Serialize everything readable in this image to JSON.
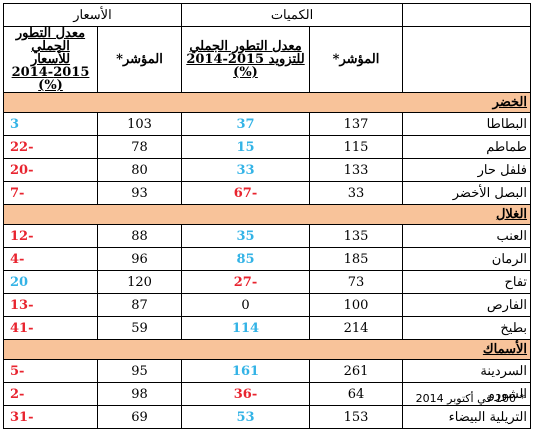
{
  "headers": {
    "quantities": "الكميات",
    "prices": "الأسعار",
    "index": "المؤشر*",
    "qty_rate_line1": "معدل التطور الجملي",
    "qty_rate_line2": "للتزويد 2015-2014",
    "prices_rate_line1": "معدل التطور الجملي",
    "prices_rate_line2": "للأسعار 2015-2014",
    "percent": "(%)"
  },
  "sections": [
    {
      "title": "الخضر",
      "rows": [
        {
          "name": "البطاطا",
          "qty_index": "137",
          "qty_rate": "37",
          "qty_color": "blue",
          "price_index": "103",
          "price_rate": "3",
          "price_color": "blue"
        },
        {
          "name": "طماطم",
          "qty_index": "115",
          "qty_rate": "15",
          "qty_color": "blue",
          "price_index": "78",
          "price_rate": "-22",
          "price_color": "red"
        },
        {
          "name": "فلفل حار",
          "qty_index": "133",
          "qty_rate": "33",
          "qty_color": "blue",
          "price_index": "80",
          "price_rate": "-20",
          "price_color": "red"
        },
        {
          "name": "البصل الأخضر",
          "qty_index": "33",
          "qty_rate": "-67",
          "qty_color": "red",
          "price_index": "93",
          "price_rate": "-7",
          "price_color": "red"
        }
      ]
    },
    {
      "title": "الغلال",
      "rows": [
        {
          "name": "العنب",
          "qty_index": "135",
          "qty_rate": "35",
          "qty_color": "blue",
          "price_index": "88",
          "price_rate": "-12",
          "price_color": "red"
        },
        {
          "name": "الرمان",
          "qty_index": "185",
          "qty_rate": "85",
          "qty_color": "blue",
          "price_index": "96",
          "price_rate": "-4",
          "price_color": "red"
        },
        {
          "name": "تفاح",
          "qty_index": "73",
          "qty_rate": "-27",
          "qty_color": "red",
          "price_index": "120",
          "price_rate": "20",
          "price_color": "blue"
        },
        {
          "name": "الفارص",
          "qty_index": "100",
          "qty_rate": "0",
          "qty_color": "plain",
          "price_index": "87",
          "price_rate": "-13",
          "price_color": "red"
        },
        {
          "name": "بطيخ",
          "qty_index": "214",
          "qty_rate": "114",
          "qty_color": "blue",
          "price_index": "59",
          "price_rate": "-41",
          "price_color": "red"
        }
      ]
    },
    {
      "title": "الأسماك",
      "rows": [
        {
          "name": "السردينة",
          "qty_index": "261",
          "qty_rate": "161",
          "qty_color": "blue",
          "price_index": "95",
          "price_rate": "-5",
          "price_color": "red"
        },
        {
          "name": "الشورو",
          "qty_index": "64",
          "qty_rate": "-36",
          "qty_color": "red",
          "price_index": "98",
          "price_rate": "-2",
          "price_color": "red"
        },
        {
          "name": "التريلية البيضاء",
          "qty_index": "153",
          "qty_rate": "53",
          "qty_color": "blue",
          "price_index": "69",
          "price_rate": "-31",
          "price_color": "red"
        }
      ]
    }
  ],
  "footnote": "* 100 في أكتوبر 2014"
}
